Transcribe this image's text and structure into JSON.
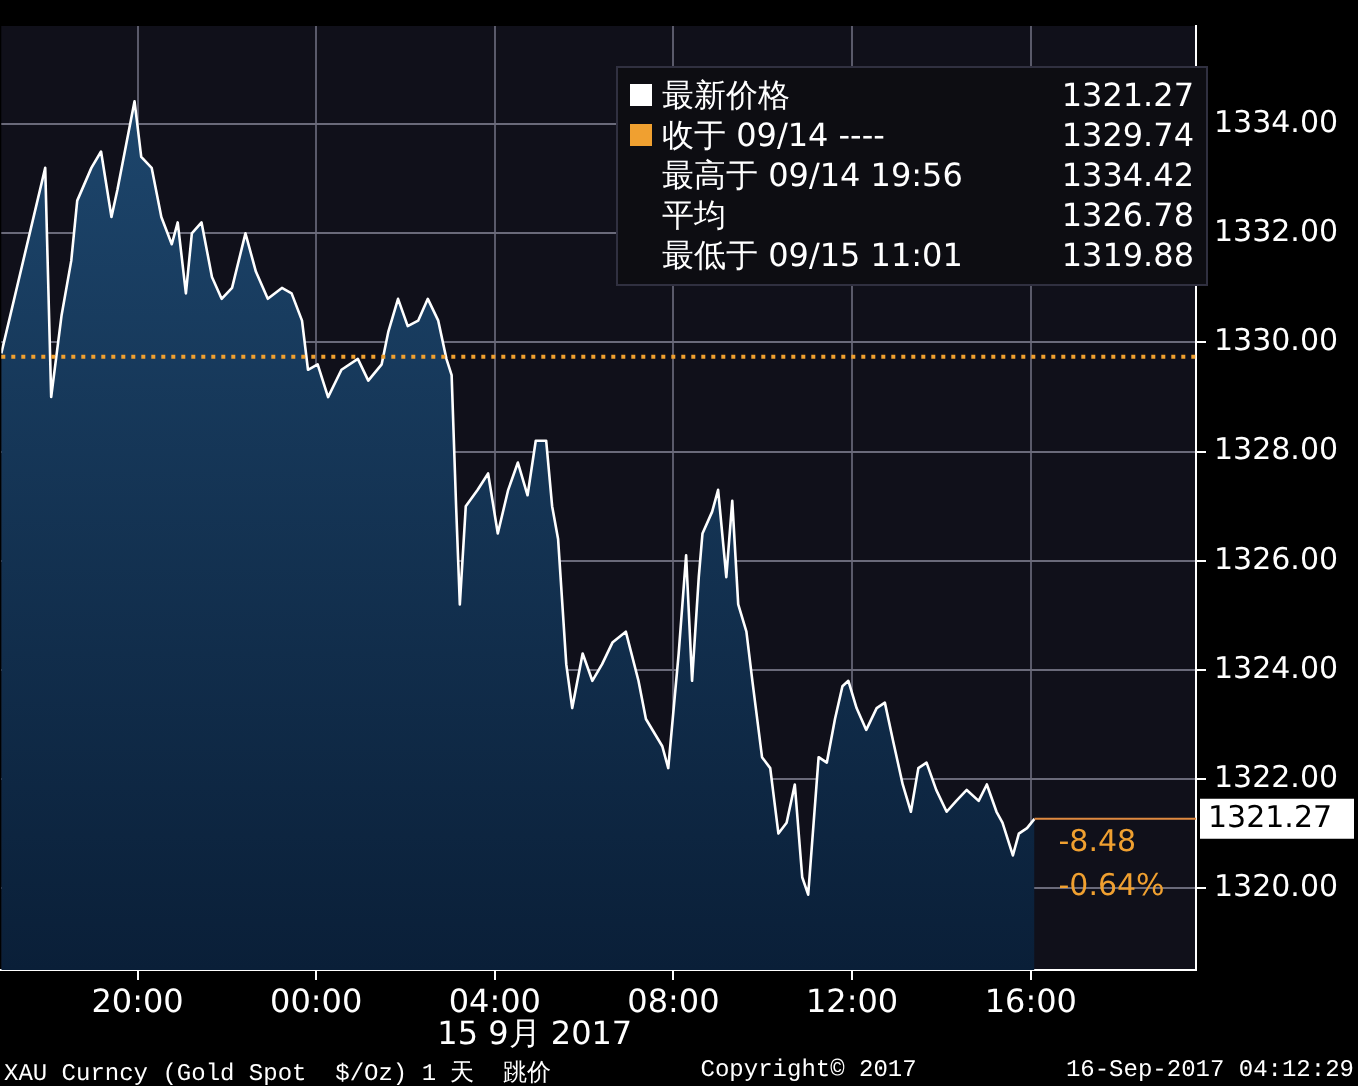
{
  "chart_data": {
    "type": "area",
    "x": [
      "2017-09-14T16:57",
      "2017-09-14T17:56",
      "2017-09-14T18:04",
      "2017-09-14T18:18",
      "2017-09-14T18:31",
      "2017-09-14T18:39",
      "2017-09-14T18:58",
      "2017-09-14T19:11",
      "2017-09-14T19:25",
      "2017-09-14T19:33",
      "2017-09-14T19:56",
      "2017-09-14T20:05",
      "2017-09-14T20:19",
      "2017-09-14T20:32",
      "2017-09-14T20:46",
      "2017-09-14T20:54",
      "2017-09-14T21:05",
      "2017-09-14T21:13",
      "2017-09-14T21:26",
      "2017-09-14T21:40",
      "2017-09-14T21:53",
      "2017-09-14T22:07",
      "2017-09-14T22:25",
      "2017-09-14T22:39",
      "2017-09-14T22:55",
      "2017-09-14T23:14",
      "2017-09-14T23:27",
      "2017-09-14T23:41",
      "2017-09-14T23:49",
      "2017-09-15T00:02",
      "2017-09-15T00:16",
      "2017-09-15T00:34",
      "2017-09-15T00:56",
      "2017-09-15T01:10",
      "2017-09-15T01:28",
      "2017-09-15T01:37",
      "2017-09-15T01:50",
      "2017-09-15T02:03",
      "2017-09-15T02:17",
      "2017-09-15T02:30",
      "2017-09-15T02:44",
      "2017-09-15T02:55",
      "2017-09-15T03:02",
      "2017-09-15T03:08",
      "2017-09-15T03:13",
      "2017-09-15T03:21",
      "2017-09-15T03:37",
      "2017-09-15T03:51",
      "2017-09-15T04:04",
      "2017-09-15T04:18",
      "2017-09-15T04:31",
      "2017-09-15T04:44",
      "2017-09-15T04:55",
      "2017-09-15T05:09",
      "2017-09-15T05:17",
      "2017-09-15T05:25",
      "2017-09-15T05:36",
      "2017-09-15T05:44",
      "2017-09-15T05:58",
      "2017-09-15T06:11",
      "2017-09-15T06:24",
      "2017-09-15T06:38",
      "2017-09-15T06:56",
      "2017-09-15T07:13",
      "2017-09-15T07:23",
      "2017-09-15T07:45",
      "2017-09-15T07:53",
      "2017-09-15T08:07",
      "2017-09-15T08:17",
      "2017-09-15T08:25",
      "2017-09-15T08:34",
      "2017-09-15T08:39",
      "2017-09-15T08:52",
      "2017-09-15T09:00",
      "2017-09-15T09:11",
      "2017-09-15T09:19",
      "2017-09-15T09:27",
      "2017-09-15T09:38",
      "2017-09-15T09:46",
      "2017-09-15T09:59",
      "2017-09-15T10:10",
      "2017-09-15T10:21",
      "2017-09-15T10:32",
      "2017-09-15T10:43",
      "2017-09-15T10:53",
      "2017-09-15T11:01",
      "2017-09-15T11:15",
      "2017-09-15T11:26",
      "2017-09-15T11:37",
      "2017-09-15T11:47",
      "2017-09-15T11:55",
      "2017-09-15T12:06",
      "2017-09-15T12:19",
      "2017-09-15T12:33",
      "2017-09-15T12:44",
      "2017-09-15T12:55",
      "2017-09-15T13:08",
      "2017-09-15T13:19",
      "2017-09-15T13:29",
      "2017-09-15T13:40",
      "2017-09-15T13:53",
      "2017-09-15T14:07",
      "2017-09-15T14:20",
      "2017-09-15T14:34",
      "2017-09-15T14:50",
      "2017-09-15T15:01",
      "2017-09-15T15:14",
      "2017-09-15T15:22",
      "2017-09-15T15:36",
      "2017-09-15T15:44",
      "2017-09-15T15:55",
      "2017-09-15T16:05"
    ],
    "series": [
      {
        "name": "最新价格",
        "color": "#ffffff",
        "values": [
          1329.8,
          1333.2,
          1329.0,
          1330.5,
          1331.5,
          1332.6,
          1333.2,
          1333.5,
          1332.3,
          1332.8,
          1334.42,
          1333.4,
          1333.2,
          1332.3,
          1331.8,
          1332.2,
          1330.9,
          1332.0,
          1332.2,
          1331.2,
          1330.8,
          1331.0,
          1332.0,
          1331.3,
          1330.8,
          1331.0,
          1330.9,
          1330.4,
          1329.5,
          1329.6,
          1329.0,
          1329.5,
          1329.7,
          1329.3,
          1329.6,
          1330.2,
          1330.8,
          1330.3,
          1330.4,
          1330.8,
          1330.4,
          1329.7,
          1329.4,
          1327.0,
          1325.2,
          1327.0,
          1327.3,
          1327.6,
          1326.5,
          1327.3,
          1327.8,
          1327.2,
          1328.2,
          1328.2,
          1327.0,
          1326.4,
          1324.1,
          1323.3,
          1324.3,
          1323.8,
          1324.1,
          1324.5,
          1324.7,
          1323.8,
          1323.1,
          1322.6,
          1322.2,
          1324.3,
          1326.1,
          1323.8,
          1325.7,
          1326.5,
          1326.9,
          1327.3,
          1325.7,
          1327.1,
          1325.2,
          1324.7,
          1323.8,
          1322.4,
          1322.2,
          1321.0,
          1321.2,
          1321.9,
          1320.2,
          1319.88,
          1322.4,
          1322.3,
          1323.1,
          1323.7,
          1323.8,
          1323.3,
          1322.9,
          1323.3,
          1323.4,
          1322.7,
          1321.9,
          1321.4,
          1322.2,
          1322.3,
          1321.8,
          1321.4,
          1321.6,
          1321.8,
          1321.6,
          1321.9,
          1321.4,
          1321.2,
          1320.6,
          1321.0,
          1321.1,
          1321.27
        ]
      }
    ],
    "xlim": [
      "2017-09-14T16:57",
      "2017-09-15T19:42"
    ],
    "xticks": [
      {
        "value": "2017-09-14T20:00",
        "label": "20:00"
      },
      {
        "value": "2017-09-15T00:00",
        "label": "00:00"
      },
      {
        "value": "2017-09-15T04:00",
        "label": "04:00"
      },
      {
        "value": "2017-09-15T08:00",
        "label": "08:00"
      },
      {
        "value": "2017-09-15T12:00",
        "label": "12:00"
      },
      {
        "value": "2017-09-15T16:00",
        "label": "16:00"
      }
    ],
    "xlabel": "15 9月 2017",
    "ylim": [
      1318.5,
      1335.8
    ],
    "yticks": [
      {
        "value": 1320,
        "label": "1320.00"
      },
      {
        "value": 1322,
        "label": "1322.00"
      },
      {
        "value": 1324,
        "label": "1324.00"
      },
      {
        "value": 1326,
        "label": "1326.00"
      },
      {
        "value": 1328,
        "label": "1328.00"
      },
      {
        "value": 1330,
        "label": "1330.00"
      },
      {
        "value": 1332,
        "label": "1332.00"
      },
      {
        "value": 1334,
        "label": "1334.00"
      }
    ],
    "ref_lines": [
      {
        "axis": "y",
        "value": 1329.74,
        "label": "收于 09/14 ---- 1329.74",
        "color": "#f0a030",
        "line_style": "dotted"
      }
    ],
    "annotations": [
      "最高于 09/14 19:56 1334.42",
      "平均 1326.78",
      "最低于 09/15 11:01 1319.88",
      {
        "text": "1321.27",
        "x": "2017-09-15T16:05",
        "y": 1321.27
      },
      "-8.48",
      "-0.64%",
      "XAU Curncy (Gold Spot  $/Oz) 1 天  跳价",
      "Copyright© 2017",
      "16-Sep-2017 04:12:29"
    ],
    "grid": true,
    "legend": "top right",
    "marker": "none",
    "line_style": "solid"
  }
}
